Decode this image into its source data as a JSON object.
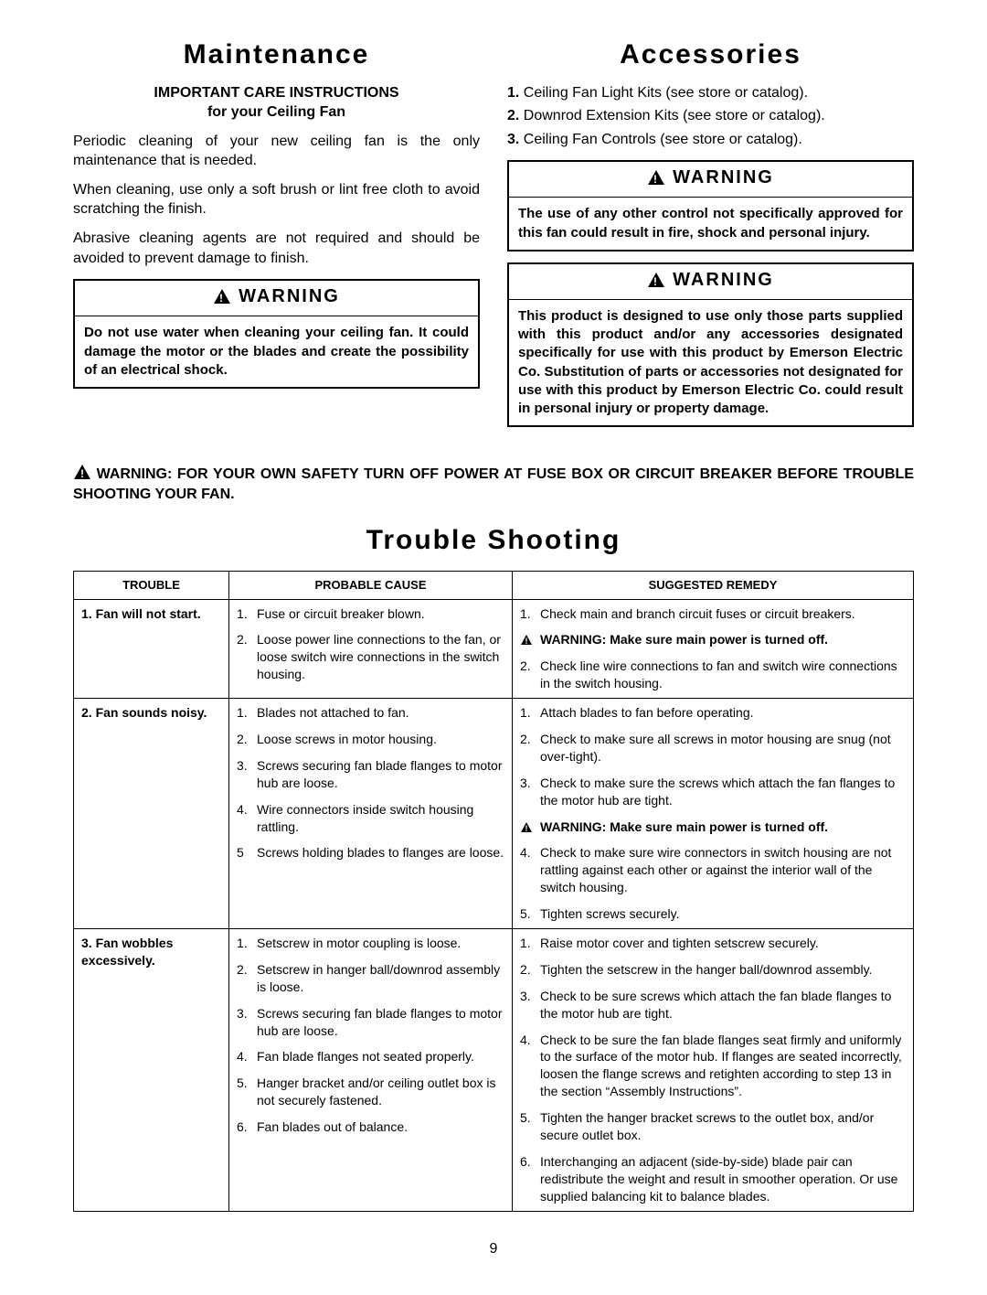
{
  "maintenance": {
    "title": "Maintenance",
    "sub1": "IMPORTANT CARE INSTRUCTIONS",
    "sub2": "for your Ceiling Fan",
    "p1": "Periodic cleaning of your new ceiling fan is the only maintenance that is needed.",
    "p2": "When cleaning, use only a soft brush or lint free cloth to avoid scratching the finish.",
    "p3": "Abrasive cleaning agents are not required and should be avoided to prevent damage to finish.",
    "warn_label": "WARNING",
    "warn_body": "Do not use water when cleaning your ceiling fan. It could damage the motor or the blades and create the possibility of an electrical shock."
  },
  "accessories": {
    "title": "Accessories",
    "items": [
      "Ceiling Fan Light Kits (see store or catalog).",
      "Downrod Extension Kits (see store or catalog).",
      "Ceiling Fan Controls (see store or catalog)."
    ],
    "warn1_label": "WARNING",
    "warn1_body": "The use of any other control not specifically approved for this fan could result in fire, shock and personal injury.",
    "warn2_label": "WARNING",
    "warn2_body": "This product is designed to use only those parts supplied with this product and/or any accessories designated specifically for use with this product by Emerson Electric Co. Substitution of parts or accessories not designated for use with this product by Emerson Electric Co. could result in personal injury or property damage."
  },
  "big_warning": "WARNING: FOR YOUR OWN SAFETY TURN OFF POWER AT FUSE BOX OR CIRCUIT BREAKER BEFORE TROUBLE SHOOTING YOUR FAN.",
  "troubleshoot": {
    "title": "Trouble Shooting",
    "headers": [
      "TROUBLE",
      "PROBABLE CAUSE",
      "SUGGESTED REMEDY"
    ],
    "rows": [
      {
        "trouble_num": "1.",
        "trouble": "Fan will not start.",
        "causes": [
          {
            "n": "1.",
            "t": "Fuse or circuit breaker blown."
          },
          {
            "n": "2.",
            "t": "Loose power line connections to the fan, or loose switch wire connections in the switch housing."
          }
        ],
        "remedies": [
          {
            "n": "1.",
            "t": "Check main and branch circuit fuses or circuit breakers."
          },
          {
            "n": "",
            "t": "WARNING: Make sure main power is turned off.",
            "warn": true
          },
          {
            "n": "2.",
            "t": "Check line wire connections to fan and switch wire connections in the switch housing."
          }
        ]
      },
      {
        "trouble_num": "2.",
        "trouble": "Fan sounds noisy.",
        "causes": [
          {
            "n": "1.",
            "t": "Blades not attached to fan."
          },
          {
            "n": "2.",
            "t": "Loose screws in motor housing."
          },
          {
            "n": "3.",
            "t": "Screws securing fan blade flanges to motor hub are loose."
          },
          {
            "n": "4.",
            "t": "Wire connectors inside switch housing rattling."
          },
          {
            "n": "5",
            "t": "Screws holding blades to flanges are loose."
          }
        ],
        "remedies": [
          {
            "n": "1.",
            "t": "Attach blades to fan before operating."
          },
          {
            "n": "2.",
            "t": "Check to make sure all screws in motor housing are snug (not over-tight)."
          },
          {
            "n": "3.",
            "t": "Check to make sure the screws which attach the fan flanges to the motor hub are tight."
          },
          {
            "n": "",
            "t": "WARNING: Make sure main power is turned off.",
            "warn": true
          },
          {
            "n": "4.",
            "t": "Check to make sure wire connectors in switch housing are not rattling against each other or against the interior wall of the switch housing."
          },
          {
            "n": "5.",
            "t": "Tighten screws securely."
          }
        ]
      },
      {
        "trouble_num": "3.",
        "trouble": "Fan wobbles excessively.",
        "causes": [
          {
            "n": "1.",
            "t": "Setscrew in motor coupling is loose."
          },
          {
            "n": "2.",
            "t": "Setscrew in hanger ball/downrod assembly is loose."
          },
          {
            "n": "3.",
            "t": "Screws securing fan blade flanges to motor hub are loose."
          },
          {
            "n": "4.",
            "t": "Fan blade flanges not seated properly."
          },
          {
            "n": "5.",
            "t": "Hanger bracket and/or ceiling outlet box is not securely fastened."
          },
          {
            "n": "6.",
            "t": "Fan blades out of balance."
          }
        ],
        "remedies": [
          {
            "n": "1.",
            "t": "Raise motor cover and tighten setscrew securely."
          },
          {
            "n": "2.",
            "t": "Tighten the setscrew in the hanger ball/downrod assembly."
          },
          {
            "n": "3.",
            "t": "Check to be sure screws which attach the fan blade flanges to the motor hub are tight."
          },
          {
            "n": "4.",
            "t": "Check to be sure the fan blade flanges seat firmly and uniformly to the surface of the motor hub. If flanges are seated incorrectly, loosen the flange screws and retighten according to step 13 in the section “Assembly Instructions”."
          },
          {
            "n": "5.",
            "t": "Tighten the hanger bracket screws to the outlet box, and/or secure outlet box."
          },
          {
            "n": "6.",
            "t": "Interchanging an adjacent (side-by-side) blade pair can redistribute the weight and result in smoother operation. Or use supplied balancing kit to balance blades."
          }
        ]
      }
    ]
  },
  "page_number": "9"
}
